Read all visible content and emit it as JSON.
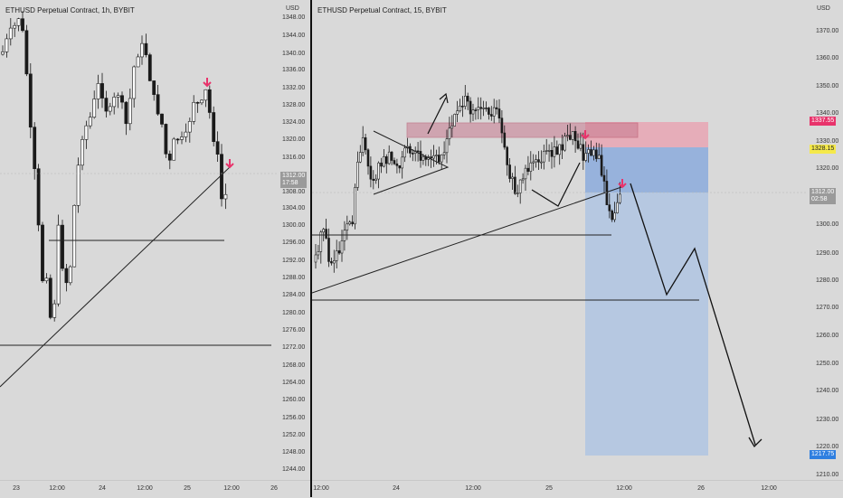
{
  "left_chart": {
    "title": "ETHUSD Perpetual Contract, 1h, BYBIT",
    "currency": "USD",
    "y_ticks": [
      "1348.00",
      "1344.00",
      "1340.00",
      "1336.00",
      "1332.00",
      "1328.00",
      "1324.00",
      "1320.00",
      "1316.00",
      "1308.00",
      "1304.00",
      "1300.00",
      "1296.00",
      "1292.00",
      "1288.00",
      "1284.00",
      "1280.00",
      "1276.00",
      "1272.00",
      "1268.00",
      "1264.00",
      "1260.00",
      "1256.00",
      "1252.00",
      "1248.00",
      "1244.00"
    ],
    "price_tag": "1312.00\n17:58",
    "x_ticks": [
      "23",
      "12:00",
      "24",
      "12:00",
      "25",
      "12:00",
      "26"
    ]
  },
  "right_chart": {
    "title": "ETHUSD Perpetual Contract, 15, BYBIT",
    "currency": "USD",
    "y_ticks": [
      "1370.00",
      "1360.00",
      "1350.00",
      "1340.00",
      "1330.00",
      "1320.00",
      "1300.00",
      "1290.00",
      "1280.00",
      "1270.00",
      "1260.00",
      "1250.00",
      "1240.00",
      "1230.00",
      "1220.00",
      "1210.00"
    ],
    "stop_tag": "1337.55",
    "entry_tag": "1328.15",
    "price_tag": "1312.00\n02:58",
    "target_tag": "1217.75",
    "x_ticks": [
      "12:00",
      "24",
      "12:00",
      "25",
      "12:00",
      "26",
      "12:00"
    ]
  },
  "colors": {
    "up_candle": "#ffffff",
    "down_candle": "#1a1a1a",
    "arrow_marker": "#e8336b",
    "stop_zone": "#e8a5b3",
    "target_zone": "#a9c1e3",
    "stop_tag_bg": "#e8336b",
    "entry_tag_bg": "#f5e94a",
    "target_tag_bg": "#2f7fe0"
  }
}
